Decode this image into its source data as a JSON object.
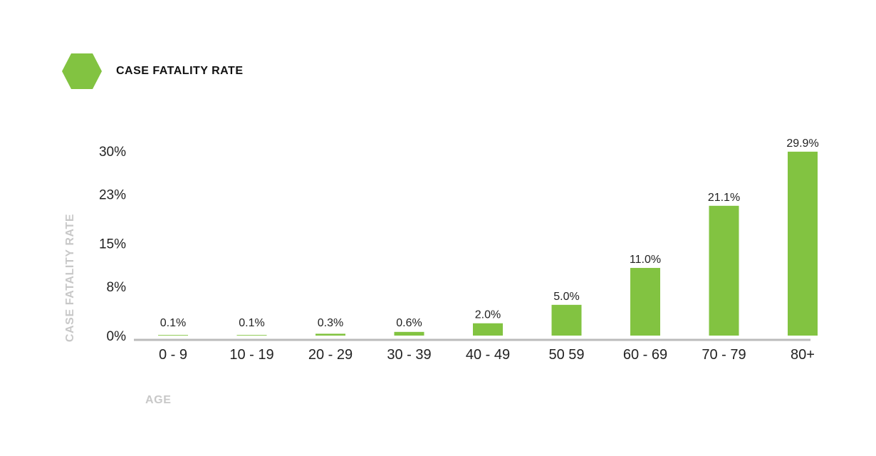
{
  "legend": {
    "label": "CASE FATALITY RATE"
  },
  "colors": {
    "bar": "#82c341",
    "axis": "#bbbbbb",
    "axis_title": "#c8c8c8"
  },
  "chart_data": {
    "type": "bar",
    "categories": [
      "0 - 9",
      "10 - 19",
      "20 - 29",
      "30 - 39",
      "40 - 49",
      "50 59",
      "60 - 69",
      "70 - 79",
      "80+"
    ],
    "values": [
      0.1,
      0.1,
      0.3,
      0.6,
      2.0,
      5.0,
      11.0,
      21.1,
      29.9
    ],
    "value_labels": [
      "0.1%",
      "0.1%",
      "0.3%",
      "0.6%",
      "2.0%",
      "5.0%",
      "11.0%",
      "21.1%",
      "29.9%"
    ],
    "y_ticks": [
      0,
      8,
      15,
      23,
      30
    ],
    "y_tick_labels": [
      "0%",
      "8%",
      "15%",
      "23%",
      "30%"
    ],
    "ylim": [
      0,
      30
    ],
    "ylabel": "CASE FATALITY RATE",
    "xlabel": "AGE",
    "grid": false,
    "legend_position": "top-left"
  }
}
